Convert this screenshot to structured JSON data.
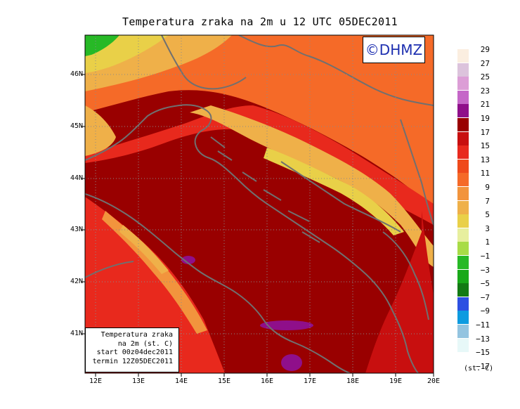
{
  "title": "Temperatura zraka na 2m u 12 UTC 05DEC2011",
  "logo": "©DHMZ",
  "info_box": {
    "line1": "Temperatura zraka",
    "line2": "na 2m (st. C)",
    "line3": "start 00z04dec2011",
    "line4": "termin 12Z05DEC2011"
  },
  "lat_labels": [
    "46N",
    "45N",
    "44N",
    "43N",
    "42N",
    "41N"
  ],
  "lon_labels": [
    "12E",
    "13E",
    "14E",
    "15E",
    "16E",
    "17E",
    "18E",
    "19E",
    "20E"
  ],
  "legend": {
    "unit": "(st. C)",
    "labels": [
      "29",
      "27",
      "25",
      "23",
      "21",
      "19",
      "17",
      "15",
      "13",
      "11",
      "9",
      "7",
      "5",
      "3",
      "1",
      "−1",
      "−3",
      "−5",
      "−7",
      "−9",
      "−11",
      "−13",
      "−15",
      "−17"
    ],
    "colors": [
      "#fbeee0",
      "#dcc3dc",
      "#dc9ed6",
      "#c567c8",
      "#8f0f8a",
      "#990000",
      "#c80f0f",
      "#e8291d",
      "#ef4a1c",
      "#f56a28",
      "#f2943d",
      "#efb049",
      "#e9d048",
      "#e7ef9e",
      "#a8dc47",
      "#27b926",
      "#19a919",
      "#137a14",
      "#2d50e2",
      "#0d9be0",
      "#93c4e0",
      "#e7f8f8",
      "#ffffff"
    ]
  },
  "colors": {
    "sea_warm": "#990000",
    "coast": "#707070",
    "logo_text": "#1d2fb0"
  }
}
